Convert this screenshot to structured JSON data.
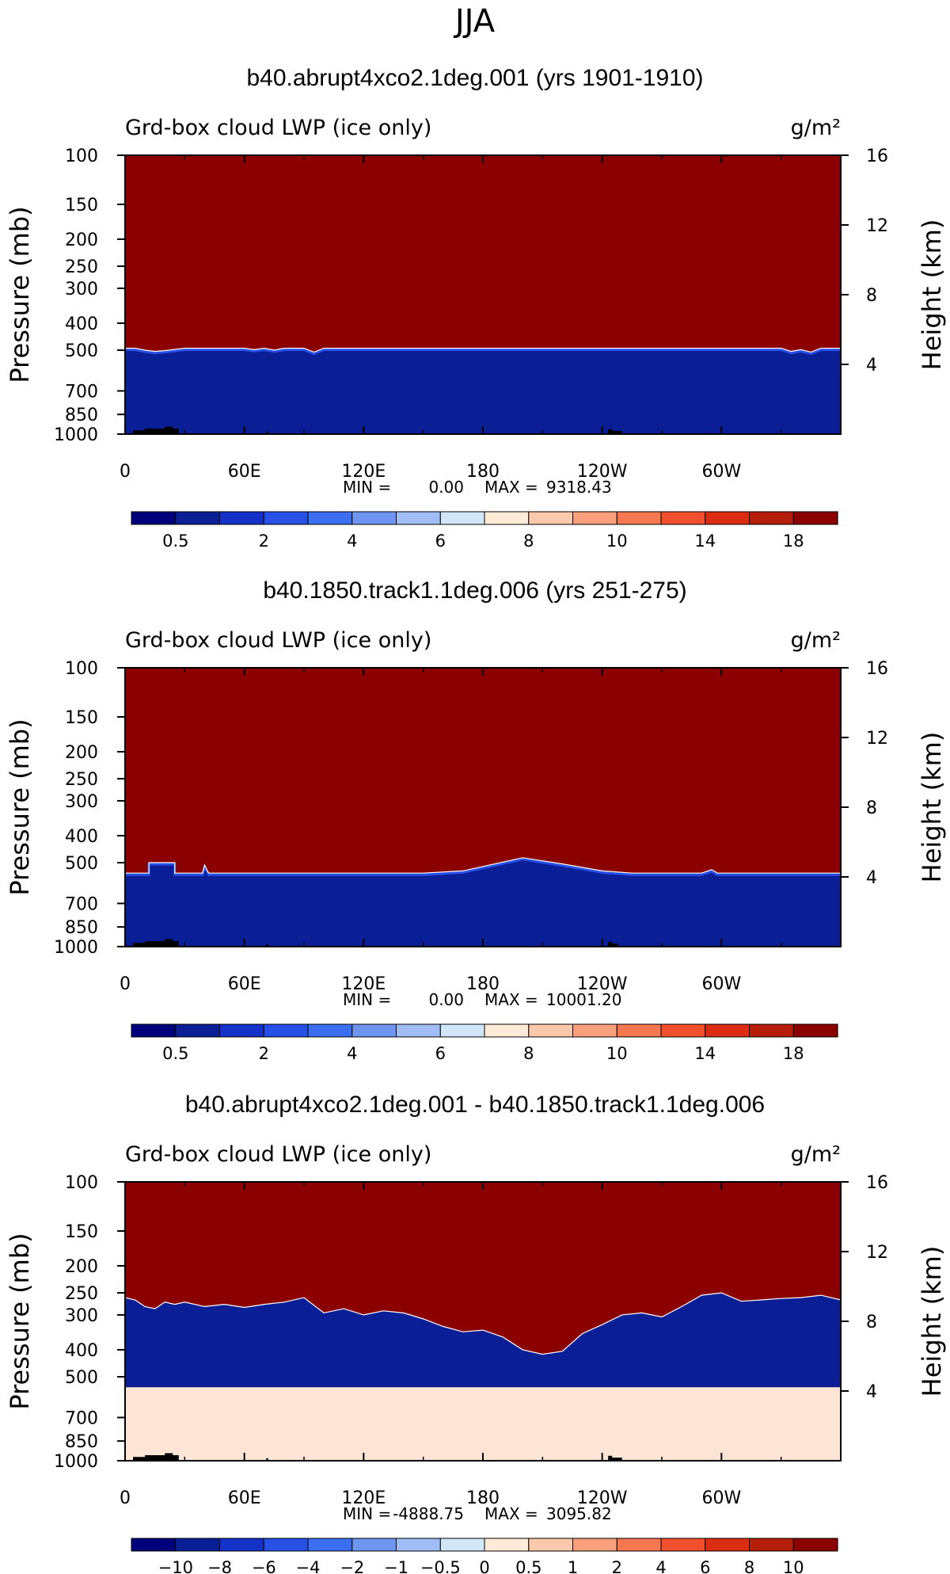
{
  "figure_title": "JJA",
  "colors": {
    "plus_fill": "#8B0000",
    "minus_fill": "#0A1E96",
    "diff_pos_fill": "#FDE5D5",
    "topography": "#000000"
  },
  "chart_data": [
    {
      "type": "heatmap",
      "title": "b40.abrupt4xco2.1deg.001 (yrs 1901-1910)",
      "left_label": "Grd-box cloud LWP (ice only)",
      "units": "g/m²",
      "ylabel": "Pressure (mb)",
      "ylabel_right": "Height (km)",
      "x_ticks": [
        "0",
        "60E",
        "120E",
        "180",
        "120W",
        "60W"
      ],
      "x_tick_values": [
        0,
        60,
        120,
        180,
        240,
        300
      ],
      "xlim": [
        0,
        360
      ],
      "y_ticks": [
        "100",
        "150",
        "200",
        "250",
        "300",
        "400",
        "500",
        "700",
        "850",
        "1000"
      ],
      "y_tick_values": [
        100,
        150,
        200,
        250,
        300,
        400,
        500,
        700,
        850,
        1000
      ],
      "ylim": [
        1000,
        100
      ],
      "y_scale": "log",
      "right_ticks": [
        "16",
        "12",
        "8",
        "4"
      ],
      "right_tick_values": [
        16,
        12,
        8,
        4
      ],
      "min_label": "MIN =",
      "min_value": "0.00",
      "max_label": "MAX =",
      "max_value": "9318.43",
      "colorbar_labels": [
        "0.5",
        "2",
        "4",
        "6",
        "8",
        "10",
        "14",
        "18"
      ],
      "colorbar_colors": [
        "#00007D",
        "#0A1E96",
        "#1432C8",
        "#2850E6",
        "#3C6EF0",
        "#6E96F0",
        "#A0BEF5",
        "#D2E6FA",
        "#FFEBD7",
        "#FAC8AA",
        "#FAA07D",
        "#F57850",
        "#F0502D",
        "#DC2D14",
        "#B41E0A",
        "#8B0000"
      ],
      "boundary": [
        [
          0,
          492
        ],
        [
          5,
          492
        ],
        [
          10,
          500
        ],
        [
          15,
          505
        ],
        [
          20,
          502
        ],
        [
          25,
          497
        ],
        [
          30,
          492
        ],
        [
          60,
          492
        ],
        [
          65,
          498
        ],
        [
          70,
          492
        ],
        [
          75,
          500
        ],
        [
          80,
          492
        ],
        [
          90,
          492
        ],
        [
          95,
          508
        ],
        [
          100,
          492
        ],
        [
          330,
          492
        ],
        [
          335,
          505
        ],
        [
          340,
          498
        ],
        [
          345,
          508
        ],
        [
          350,
          492
        ],
        [
          360,
          492
        ]
      ],
      "topography": [
        [
          4,
          1000
        ],
        [
          4,
          970
        ],
        [
          10,
          970
        ],
        [
          10,
          955
        ],
        [
          20,
          955
        ],
        [
          20,
          940
        ],
        [
          24,
          940
        ],
        [
          24,
          955
        ],
        [
          27,
          955
        ],
        [
          27,
          1000
        ],
        [
          71,
          1000
        ],
        [
          71,
          980
        ],
        [
          72,
          980
        ],
        [
          72,
          1000
        ],
        [
          243,
          1000
        ],
        [
          243,
          960
        ],
        [
          245,
          960
        ],
        [
          245,
          975
        ],
        [
          250,
          975
        ],
        [
          250,
          1000
        ]
      ]
    },
    {
      "type": "heatmap",
      "title": "b40.1850.track1.1deg.006 (yrs 251-275)",
      "left_label": "Grd-box cloud LWP (ice only)",
      "units": "g/m²",
      "ylabel": "Pressure (mb)",
      "ylabel_right": "Height (km)",
      "x_ticks": [
        "0",
        "60E",
        "120E",
        "180",
        "120W",
        "60W"
      ],
      "x_tick_values": [
        0,
        60,
        120,
        180,
        240,
        300
      ],
      "xlim": [
        0,
        360
      ],
      "y_ticks": [
        "100",
        "150",
        "200",
        "250",
        "300",
        "400",
        "500",
        "700",
        "850",
        "1000"
      ],
      "y_tick_values": [
        100,
        150,
        200,
        250,
        300,
        400,
        500,
        700,
        850,
        1000
      ],
      "ylim": [
        1000,
        100
      ],
      "y_scale": "log",
      "right_ticks": [
        "16",
        "12",
        "8",
        "4"
      ],
      "right_tick_values": [
        16,
        12,
        8,
        4
      ],
      "min_label": "MIN =",
      "min_value": "0.00",
      "max_label": "MAX =",
      "max_value": "10001.20",
      "colorbar_labels": [
        "0.5",
        "2",
        "4",
        "6",
        "8",
        "10",
        "14",
        "18"
      ],
      "colorbar_colors": [
        "#00007D",
        "#0A1E96",
        "#1432C8",
        "#2850E6",
        "#3C6EF0",
        "#6E96F0",
        "#A0BEF5",
        "#D2E6FA",
        "#FFEBD7",
        "#FAC8AA",
        "#FAA07D",
        "#F57850",
        "#F0502D",
        "#DC2D14",
        "#B41E0A",
        "#8B0000"
      ],
      "boundary": [
        [
          0,
          545
        ],
        [
          12,
          545
        ],
        [
          12,
          500
        ],
        [
          25,
          500
        ],
        [
          25,
          545
        ],
        [
          39,
          545
        ],
        [
          40,
          510
        ],
        [
          42,
          545
        ],
        [
          150,
          545
        ],
        [
          170,
          535
        ],
        [
          200,
          480
        ],
        [
          220,
          505
        ],
        [
          240,
          535
        ],
        [
          255,
          545
        ],
        [
          290,
          545
        ],
        [
          295,
          530
        ],
        [
          298,
          545
        ],
        [
          360,
          545
        ]
      ],
      "topography": [
        [
          4,
          1000
        ],
        [
          4,
          970
        ],
        [
          10,
          970
        ],
        [
          10,
          955
        ],
        [
          20,
          955
        ],
        [
          20,
          940
        ],
        [
          24,
          940
        ],
        [
          24,
          955
        ],
        [
          27,
          955
        ],
        [
          27,
          1000
        ],
        [
          71,
          1000
        ],
        [
          71,
          980
        ],
        [
          72,
          980
        ],
        [
          72,
          1000
        ],
        [
          243,
          1000
        ],
        [
          243,
          960
        ],
        [
          245,
          960
        ],
        [
          245,
          975
        ],
        [
          248,
          975
        ],
        [
          248,
          1000
        ]
      ]
    },
    {
      "type": "heatmap",
      "title": "b40.abrupt4xco2.1deg.001 - b40.1850.track1.1deg.006",
      "left_label": "Grd-box cloud LWP (ice only)",
      "units": "g/m²",
      "ylabel": "Pressure (mb)",
      "ylabel_right": "Height (km)",
      "x_ticks": [
        "0",
        "60E",
        "120E",
        "180",
        "120W",
        "60W"
      ],
      "x_tick_values": [
        0,
        60,
        120,
        180,
        240,
        300
      ],
      "xlim": [
        0,
        360
      ],
      "y_ticks": [
        "100",
        "150",
        "200",
        "250",
        "300",
        "400",
        "500",
        "700",
        "850",
        "1000"
      ],
      "y_tick_values": [
        100,
        150,
        200,
        250,
        300,
        400,
        500,
        700,
        850,
        1000
      ],
      "ylim": [
        1000,
        100
      ],
      "y_scale": "log",
      "right_ticks": [
        "16",
        "12",
        "8",
        "4"
      ],
      "right_tick_values": [
        16,
        12,
        8,
        4
      ],
      "min_label": "MIN =",
      "min_value": "-4888.75",
      "max_label": "MAX =",
      "max_value": "3095.82",
      "colorbar_labels": [
        "−10",
        "−8",
        "−6",
        "−4",
        "−2",
        "−1",
        "−0.5",
        "0",
        "0.5",
        "1",
        "2",
        "4",
        "6",
        "8",
        "10"
      ],
      "colorbar_colors": [
        "#00007D",
        "#0A1E96",
        "#1432C8",
        "#2850E6",
        "#3C6EF0",
        "#6E96F0",
        "#A0BEF5",
        "#D2E6FA",
        "#FFEBD7",
        "#FAC8AA",
        "#FAA07D",
        "#F57850",
        "#F0502D",
        "#DC2D14",
        "#B41E0A",
        "#8B0000"
      ],
      "boundary_upper": [
        [
          0,
          260
        ],
        [
          5,
          265
        ],
        [
          10,
          280
        ],
        [
          15,
          285
        ],
        [
          20,
          270
        ],
        [
          25,
          275
        ],
        [
          30,
          270
        ],
        [
          40,
          280
        ],
        [
          50,
          275
        ],
        [
          60,
          282
        ],
        [
          70,
          275
        ],
        [
          80,
          270
        ],
        [
          90,
          260
        ],
        [
          100,
          295
        ],
        [
          110,
          285
        ],
        [
          120,
          300
        ],
        [
          130,
          290
        ],
        [
          140,
          295
        ],
        [
          150,
          310
        ],
        [
          160,
          330
        ],
        [
          170,
          345
        ],
        [
          180,
          340
        ],
        [
          190,
          360
        ],
        [
          200,
          400
        ],
        [
          210,
          415
        ],
        [
          220,
          405
        ],
        [
          230,
          350
        ],
        [
          240,
          325
        ],
        [
          250,
          300
        ],
        [
          260,
          295
        ],
        [
          270,
          305
        ],
        [
          280,
          280
        ],
        [
          290,
          255
        ],
        [
          300,
          250
        ],
        [
          310,
          268
        ],
        [
          320,
          265
        ],
        [
          330,
          262
        ],
        [
          340,
          260
        ],
        [
          350,
          255
        ],
        [
          360,
          265
        ]
      ],
      "boundary_lower": [
        [
          0,
          545
        ],
        [
          360,
          545
        ]
      ],
      "topography": [
        [
          4,
          1000
        ],
        [
          4,
          970
        ],
        [
          10,
          970
        ],
        [
          10,
          955
        ],
        [
          20,
          955
        ],
        [
          20,
          940
        ],
        [
          24,
          940
        ],
        [
          24,
          955
        ],
        [
          27,
          955
        ],
        [
          27,
          1000
        ],
        [
          71,
          1000
        ],
        [
          71,
          980
        ],
        [
          72,
          980
        ],
        [
          72,
          1000
        ],
        [
          243,
          1000
        ],
        [
          243,
          960
        ],
        [
          245,
          960
        ],
        [
          245,
          975
        ],
        [
          250,
          975
        ],
        [
          250,
          1000
        ]
      ]
    }
  ]
}
